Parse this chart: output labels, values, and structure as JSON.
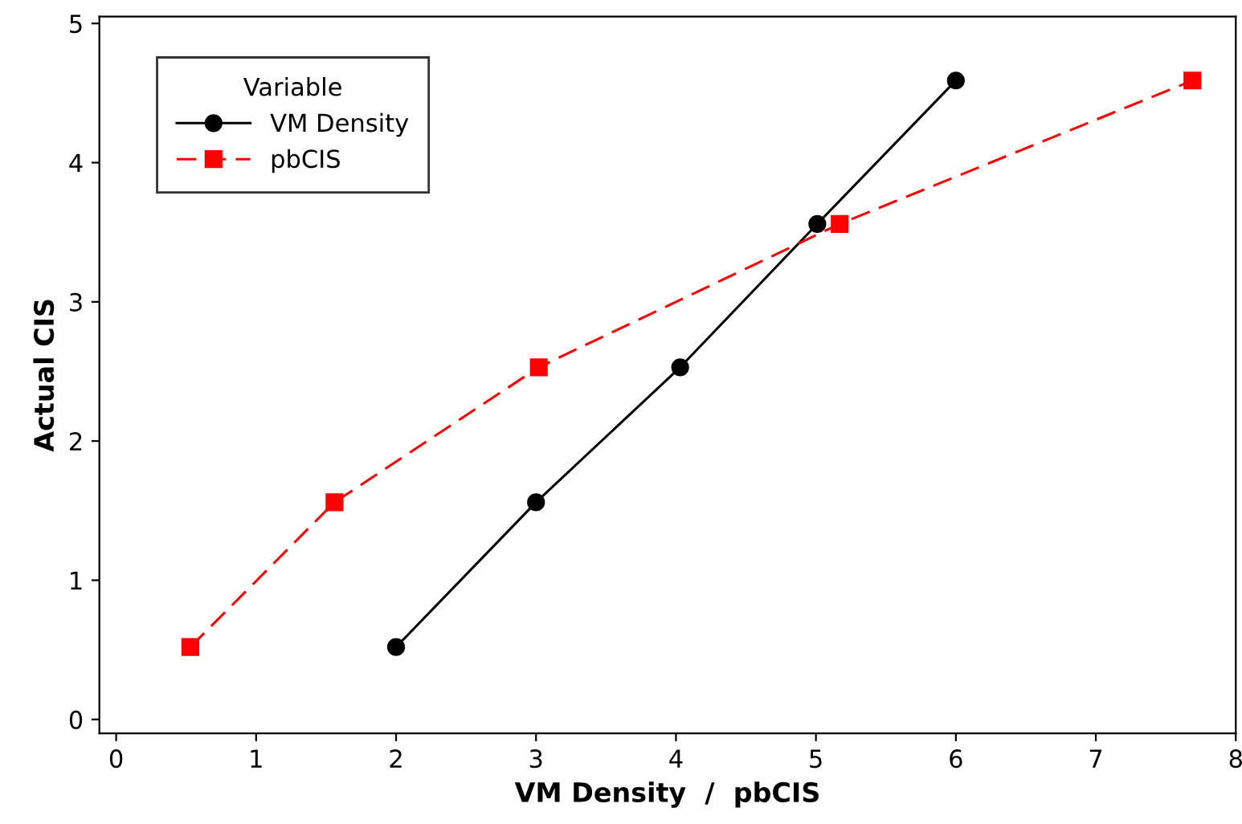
{
  "chart_data": {
    "type": "line",
    "xlabel": "VM Density  /  pbCIS",
    "ylabel": "Actual CIS",
    "legend_title": "Variable",
    "legend": "top left",
    "grid": false,
    "xlim": [
      -0.12,
      8.0
    ],
    "ylim": [
      -0.1,
      5.05
    ],
    "xticks": [
      0,
      1,
      2,
      3,
      4,
      5,
      6,
      7,
      8
    ],
    "yticks": [
      0,
      1,
      2,
      3,
      4,
      5
    ],
    "series": [
      {
        "name": "VM Density",
        "color": "#000000",
        "marker": "circle",
        "line_style": "solid",
        "x": [
          2,
          3,
          4.03,
          5.01,
          6
        ],
        "values": [
          0.52,
          1.56,
          2.53,
          3.56,
          4.59
        ]
      },
      {
        "name": "pbCIS",
        "color": "#ff0000",
        "marker": "square",
        "line_style": "dashed",
        "x": [
          0.53,
          1.56,
          3.02,
          5.17,
          7.69
        ],
        "values": [
          0.52,
          1.56,
          2.53,
          3.56,
          4.59
        ]
      }
    ]
  }
}
